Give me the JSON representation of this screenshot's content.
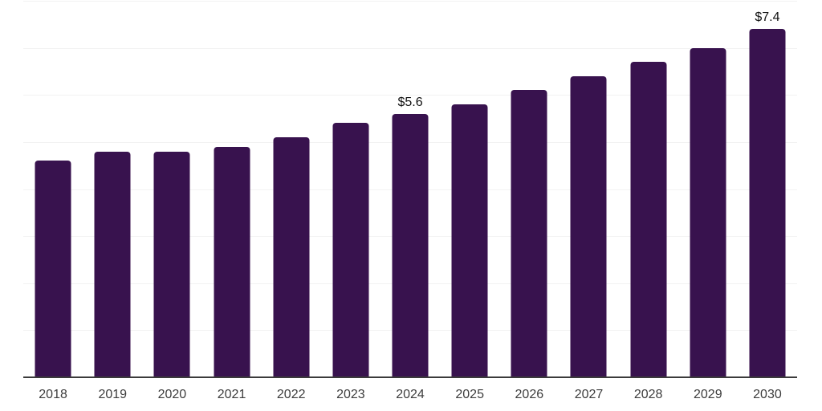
{
  "chart_data": {
    "type": "bar",
    "title": "",
    "xlabel": "",
    "ylabel": "",
    "categories": [
      "2018",
      "2019",
      "2020",
      "2021",
      "2022",
      "2023",
      "2024",
      "2025",
      "2026",
      "2027",
      "2028",
      "2029",
      "2030"
    ],
    "values": [
      4.6,
      4.8,
      4.8,
      4.9,
      5.1,
      5.4,
      5.6,
      5.8,
      6.1,
      6.4,
      6.7,
      7.0,
      7.4
    ],
    "annotations": [
      {
        "category": "2024",
        "text": "$5.6"
      },
      {
        "category": "2030",
        "text": "$7.4"
      }
    ],
    "ylim": [
      0,
      8
    ],
    "gridline_step": 1,
    "grid": true,
    "legend_position": "none",
    "colors": {
      "bar": "#38124E",
      "axis": "#3b3b3b",
      "gridline": "#f2f2f2",
      "value_label": "#111111",
      "tick_label": "#3d3d3d",
      "background": "#ffffff"
    }
  }
}
